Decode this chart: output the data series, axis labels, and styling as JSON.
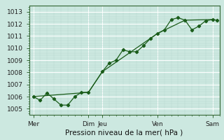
{
  "bg_color": "#cce8e0",
  "line_color": "#1a5c1a",
  "xlabel": "Pression niveau de la mer( hPa )",
  "ylim": [
    1004.5,
    1013.5
  ],
  "yticks": [
    1005,
    1006,
    1007,
    1008,
    1009,
    1010,
    1011,
    1012,
    1013
  ],
  "xtick_labels": [
    "Mer",
    "Dim",
    "Jeu",
    "Ven",
    "Sam"
  ],
  "xtick_positions": [
    0,
    4,
    5,
    9,
    13
  ],
  "xlim": [
    -0.3,
    13.5
  ],
  "series1_x": [
    0,
    0.5,
    1,
    1.5,
    2,
    2.5,
    3,
    3.5,
    4,
    5,
    5.5,
    6,
    6.5,
    7,
    7.5,
    8,
    8.5,
    9,
    9.5,
    10,
    10.5,
    11,
    11.5,
    12,
    12.5,
    13,
    13.3
  ],
  "series1_y": [
    1006.0,
    1005.7,
    1006.3,
    1005.8,
    1005.3,
    1005.3,
    1006.0,
    1006.35,
    1006.35,
    1008.05,
    1008.75,
    1009.0,
    1009.85,
    1009.7,
    1009.7,
    1010.2,
    1010.8,
    1011.2,
    1011.5,
    1012.35,
    1012.5,
    1012.3,
    1011.5,
    1011.8,
    1012.25,
    1012.35,
    1012.3
  ],
  "series2_x": [
    0,
    4,
    5,
    9,
    11,
    13
  ],
  "series2_y": [
    1006.0,
    1006.35,
    1008.05,
    1011.2,
    1012.3,
    1012.35
  ],
  "tick_fontsize": 6.5,
  "xlabel_fontsize": 7.5,
  "major_grid_color": "#ffffff",
  "minor_grid_color": "#b8d8d0"
}
